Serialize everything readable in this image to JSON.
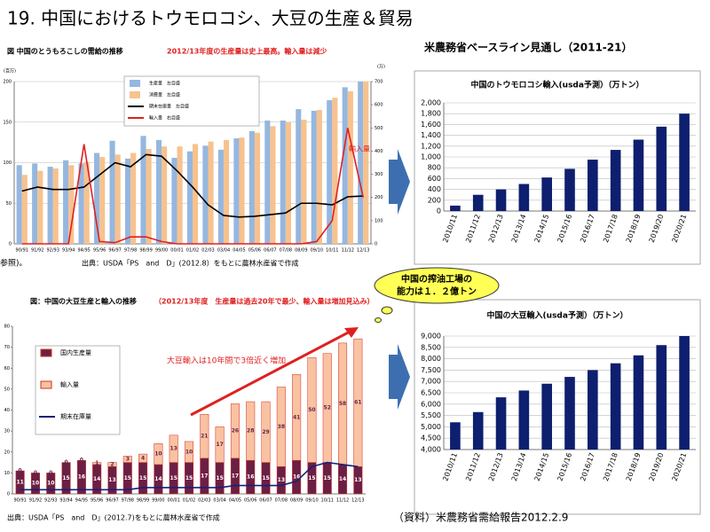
{
  "slide": {
    "title": "19. 中国におけるトウモロコシ、大豆の生産＆貿易",
    "baseline_heading": "米農務省ベースライン見通し（2011-21）",
    "cut_text": "参照)。",
    "callout": [
      "中国の搾油工場の",
      "能力は１．２億トン"
    ],
    "footnote": "（資料）米農務省需給報告2012.2.9"
  },
  "chart_data": [
    {
      "type": "combo",
      "title": "図 中国のとうもろこしの需給の推移",
      "subtitle": "2012/13年度の生産量は史上最高。輸入量は減少",
      "source": "出典：USDA「PS　and　D」(2012.8）をもとに農林水産省で作成",
      "y_label": "(百万)",
      "y2_label": "(万)",
      "annotation": "輸入量",
      "categories": [
        "90/91",
        "91/92",
        "92/93",
        "93/94",
        "94/95",
        "95/96",
        "96/97",
        "97/98",
        "98/99",
        "99/00",
        "00/01",
        "01/02",
        "02/03",
        "03/04",
        "04/05",
        "05/06",
        "06/07",
        "07/08",
        "08/09",
        "09/10",
        "10/11",
        "11/12",
        "12/13"
      ],
      "series": [
        {
          "name": "生産量　左目盛",
          "type": "bar",
          "color": "#95b7df",
          "values": [
            97,
            99,
            95,
            103,
            99,
            112,
            127,
            105,
            133,
            128,
            106,
            114,
            121,
            116,
            130,
            139,
            152,
            152,
            166,
            164,
            177,
            193,
            200
          ]
        },
        {
          "name": "消費量　左目盛",
          "type": "bar",
          "color": "#f7c28e",
          "values": [
            85,
            90,
            93,
            97,
            101,
            107,
            110,
            112,
            117,
            120,
            120,
            123,
            126,
            128,
            131,
            137,
            145,
            150,
            153,
            165,
            180,
            188,
            200
          ]
        },
        {
          "name": "期末在庫量　左目盛",
          "type": "line",
          "color": "#000000",
          "values": [
            65,
            70,
            67,
            67,
            70,
            85,
            100,
            95,
            110,
            108,
            90,
            70,
            48,
            35,
            33,
            34,
            36,
            38,
            50,
            50,
            48,
            58,
            59
          ]
        },
        {
          "name": "輸入量　右目盛",
          "type": "line",
          "axis": "y2",
          "color": "#e02020",
          "values": [
            0,
            0,
            0,
            0,
            430,
            10,
            5,
            30,
            30,
            10,
            0,
            0,
            0,
            0,
            0,
            0,
            0,
            0,
            0,
            10,
            100,
            500,
            200
          ]
        }
      ],
      "ylim": [
        0,
        200
      ],
      "yticks": [
        0,
        50,
        100,
        150,
        200
      ],
      "y2lim": [
        0,
        700
      ],
      "y2ticks": [
        0,
        100,
        200,
        300,
        400,
        500,
        600,
        700
      ],
      "grid": true
    },
    {
      "type": "combo",
      "stacked": true,
      "show_values": true,
      "title": "図：中国の大豆生産と輸入の推移",
      "subtitle": "（2012/13年度　生産量は過去20年で最少、輸入量は増加見込み）",
      "source": "出典：USDA「PS　and　D」(2012.7)をもとに農林水産省で作成",
      "annotation": "大豆輸入は10年間で3倍近く増加",
      "categories": [
        "90/91",
        "91/92",
        "92/93",
        "93/94",
        "94/95",
        "95/96",
        "96/97",
        "97/98",
        "98/99",
        "99/00",
        "00/01",
        "01/02",
        "02/03",
        "03/04",
        "04/05",
        "05/06",
        "06/07",
        "07/08",
        "08/09",
        "09/10",
        "10/11",
        "11/12",
        "12/13"
      ],
      "series": [
        {
          "name": "国内生産量",
          "type": "bar",
          "color": "#6b1f45",
          "values": [
            11,
            10,
            10,
            15,
            16,
            14,
            13,
            15,
            15,
            14,
            15,
            15,
            17,
            15,
            17,
            16,
            15,
            13,
            16,
            15,
            15,
            14,
            13
          ]
        },
        {
          "name": "輸入量",
          "type": "bar",
          "color": "#f9c2a2",
          "values": [
            0,
            0,
            0,
            0,
            0,
            1,
            2,
            3,
            4,
            10,
            13,
            10,
            21,
            17,
            26,
            28,
            29,
            38,
            41,
            50,
            52,
            58,
            61
          ]
        },
        {
          "name": "期末在庫量",
          "type": "line",
          "color": "#14207a",
          "values": [
            2,
            2,
            2,
            2,
            2,
            2,
            2,
            2,
            3,
            3,
            3,
            3,
            3,
            3,
            4,
            4,
            4,
            4,
            6,
            13,
            15,
            14,
            13
          ]
        }
      ],
      "ylim": [
        0,
        80
      ],
      "yticks": [
        0,
        10,
        20,
        30,
        40,
        50,
        60,
        70,
        80
      ],
      "grid": false
    },
    {
      "type": "bar",
      "title": "中国のトウモロコシ輸入(usda予測）（万トン）",
      "color": "#0d1f6e",
      "categories": [
        "2010/11",
        "2011/12",
        "2012/13",
        "2013/14",
        "2014/15",
        "2015/16",
        "2016/17",
        "2017/18",
        "2018/19",
        "2019/20",
        "2020/21"
      ],
      "values": [
        100,
        300,
        400,
        500,
        620,
        780,
        950,
        1130,
        1320,
        1560,
        1800
      ],
      "ylim": [
        0,
        2000
      ],
      "yticks": [
        0,
        200,
        400,
        600,
        800,
        {
          "value": 1000,
          "label": "1,000"
        },
        {
          "value": 1200,
          "label": "1,200"
        },
        {
          "value": 1400,
          "label": "1,400"
        },
        {
          "value": 1600,
          "label": "1,600"
        },
        {
          "value": 1800,
          "label": "1,800"
        },
        {
          "value": 2000,
          "label": "2,000"
        }
      ],
      "grid": true
    },
    {
      "type": "bar",
      "title": "中国の大豆輸入(usda予測）（万トン）",
      "color": "#0d1f6e",
      "categories": [
        "2010/11",
        "2011/12",
        "2012/13",
        "2013/14",
        "2014/15",
        "2015/16",
        "2016/17",
        "2017/18",
        "2018/19",
        "2019/20",
        "2020/21"
      ],
      "values": [
        5200,
        5650,
        6300,
        6600,
        6900,
        7200,
        7500,
        7800,
        8150,
        8600,
        9000
      ],
      "ylim": [
        4000,
        9000
      ],
      "yticks": [
        {
          "value": 4000,
          "label": "4,000"
        },
        {
          "value": 4500,
          "label": "4,500"
        },
        {
          "value": 5000,
          "label": "5,000"
        },
        {
          "value": 5500,
          "label": "5,500"
        },
        {
          "value": 6000,
          "label": "6,000"
        },
        {
          "value": 6500,
          "label": "6,500"
        },
        {
          "value": 7000,
          "label": "7,000"
        },
        {
          "value": 7500,
          "label": "7,500"
        },
        {
          "value": 8000,
          "label": "8,000"
        },
        {
          "value": 8500,
          "label": "8,500"
        },
        {
          "value": 9000,
          "label": "9,000"
        }
      ],
      "grid": true
    }
  ]
}
